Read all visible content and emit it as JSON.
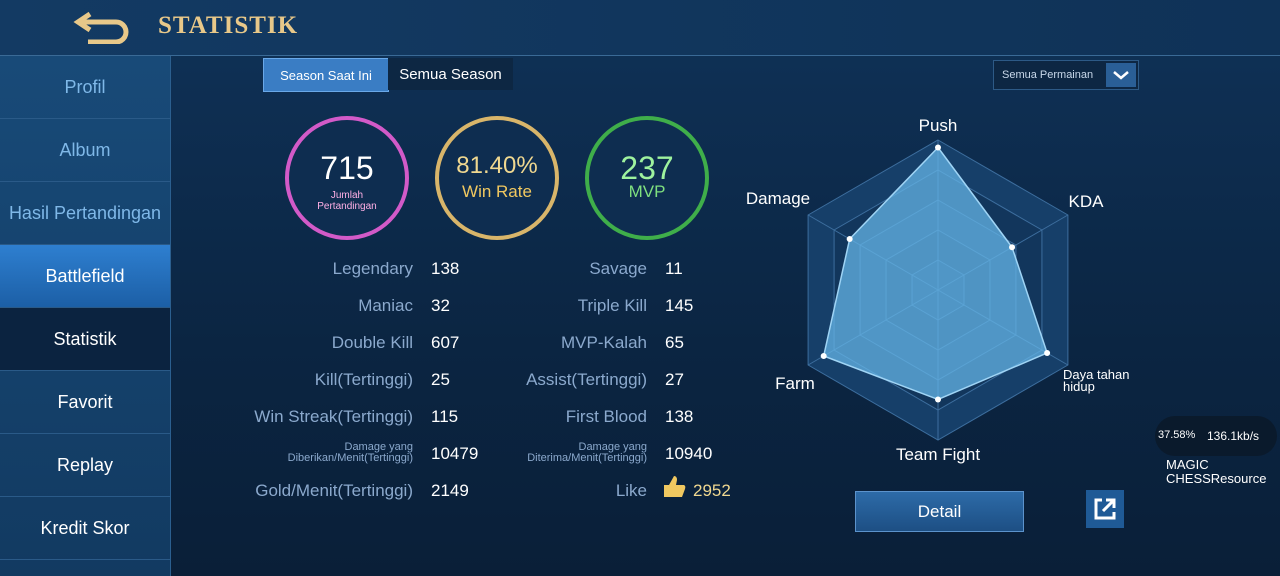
{
  "header": {
    "title": "STATISTIK"
  },
  "sidebar": {
    "items": [
      "Profil",
      "Album",
      "Hasil Pertandingan",
      "Battlefield",
      "Statistik",
      "Favorit",
      "Replay",
      "Kredit Skor"
    ]
  },
  "tabs": [
    "Season Saat Ini",
    "Semua Season"
  ],
  "filter": "Semua Permainan",
  "summary": [
    {
      "value": 715,
      "label": "Jumlah Pertandingan"
    },
    {
      "value": "81.40%",
      "label": "Win Rate"
    },
    {
      "value": 237,
      "label": "MVP"
    }
  ],
  "stats_left": [
    {
      "label": "Legendary",
      "value": 138
    },
    {
      "label": "Maniac",
      "value": 32
    },
    {
      "label": "Double Kill",
      "value": 607
    },
    {
      "label": "Kill(Tertinggi)",
      "value": 25
    },
    {
      "label": "Win Streak(Tertinggi)",
      "value": 115
    },
    {
      "label": "Damage yang Diberikan/Menit(Tertinggi)",
      "value": 10479
    },
    {
      "label": "Gold/Menit(Tertinggi)",
      "value": 2149
    }
  ],
  "stats_right": [
    {
      "label": "Savage",
      "value": 11
    },
    {
      "label": "Triple Kill",
      "value": 145
    },
    {
      "label": "MVP-Kalah",
      "value": 65
    },
    {
      "label": "Assist(Tertinggi)",
      "value": 27
    },
    {
      "label": "First Blood",
      "value": 138
    },
    {
      "label": "Damage yang Diterima/Menit(Tertinggi)",
      "value": 10940
    },
    {
      "label": "Like",
      "value": 2952
    }
  ],
  "radar": {
    "axes": [
      "Push",
      "KDA",
      "Daya tahan hidup",
      "Team Fight",
      "Farm",
      "Damage"
    ],
    "values": [
      95,
      57,
      84,
      73,
      88,
      68
    ],
    "rlim": [
      0,
      100
    ]
  },
  "detail_button": "Detail",
  "overlay": {
    "progress": "37.58%",
    "speed": "136.1kb/s",
    "label": "MAGIC CHESSResource"
  }
}
